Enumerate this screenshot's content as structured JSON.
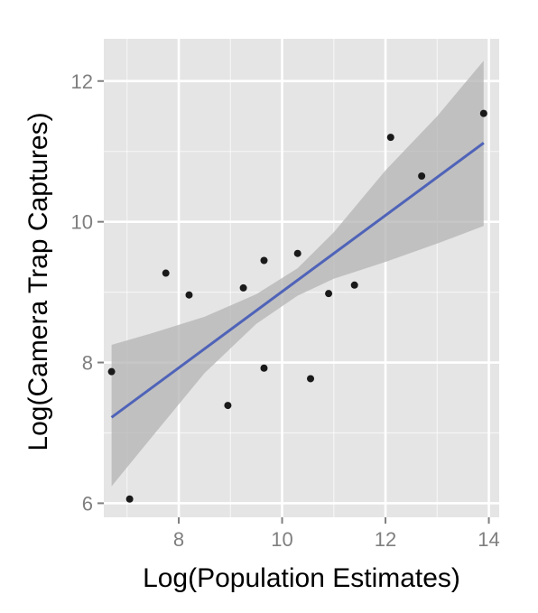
{
  "chart_data": {
    "type": "scatter",
    "title": "",
    "xlabel": "Log(Population Estimates)",
    "ylabel": "Log(Camera Trap Captures)",
    "xlim": [
      6.55,
      14.2
    ],
    "ylim": [
      5.8,
      12.6
    ],
    "x_ticks": [
      8,
      10,
      12,
      14
    ],
    "y_ticks": [
      6,
      8,
      10,
      12
    ],
    "x_tick_labels": [
      "8",
      "10",
      "12",
      "14"
    ],
    "y_tick_labels": [
      "6",
      "8",
      "10",
      "12"
    ],
    "grid": true,
    "colors": {
      "panel": "#e5e5e5",
      "grid": "#ffffff",
      "points": "#1a1a1a",
      "fit_line": "#4f63b8",
      "confidence_band": "#b3b3b3"
    },
    "points": [
      {
        "x": 6.7,
        "y": 7.87
      },
      {
        "x": 7.05,
        "y": 6.06
      },
      {
        "x": 7.75,
        "y": 9.27
      },
      {
        "x": 8.2,
        "y": 8.96
      },
      {
        "x": 8.95,
        "y": 7.39
      },
      {
        "x": 9.25,
        "y": 9.06
      },
      {
        "x": 9.65,
        "y": 7.92
      },
      {
        "x": 9.65,
        "y": 9.45
      },
      {
        "x": 10.3,
        "y": 9.55
      },
      {
        "x": 10.55,
        "y": 7.77
      },
      {
        "x": 10.9,
        "y": 8.98
      },
      {
        "x": 11.4,
        "y": 9.1
      },
      {
        "x": 12.1,
        "y": 11.2
      },
      {
        "x": 12.7,
        "y": 10.65
      },
      {
        "x": 13.9,
        "y": 11.54
      }
    ],
    "fit_line": {
      "x": [
        6.7,
        13.9
      ],
      "y": [
        7.22,
        11.12
      ]
    },
    "confidence_band": {
      "x": [
        6.7,
        7.5,
        8.5,
        9.5,
        10.3,
        11.0,
        12.0,
        13.0,
        13.9
      ],
      "lower": [
        6.24,
        6.96,
        7.85,
        8.55,
        8.95,
        9.19,
        9.43,
        9.69,
        9.94
      ],
      "upper": [
        8.25,
        8.42,
        8.65,
        8.97,
        9.34,
        9.85,
        10.73,
        11.5,
        12.29
      ]
    }
  }
}
